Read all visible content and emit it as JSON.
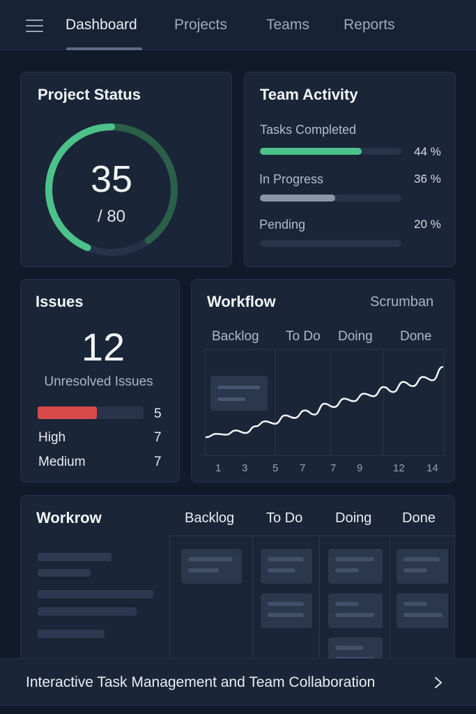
{
  "nav": {
    "tabs": [
      "Dashboard",
      "Projects",
      "Teams",
      "Reports"
    ],
    "active": "Dashboard"
  },
  "project_status": {
    "title": "Project Status",
    "value": "35",
    "total": "/ 80",
    "progress_fraction": 0.4375,
    "colors": {
      "progress": "#4cc28a",
      "remaining": "#2a6049",
      "track": "#26324a"
    }
  },
  "team_activity": {
    "title": "Team Activity",
    "rows": [
      {
        "label": "Tasks Completed",
        "percent": "44 %",
        "fill_fraction": 0.72,
        "color": "#4cc28a"
      },
      {
        "label": "In Progress",
        "percent": "36 %",
        "fill_fraction": 0.53,
        "color": "#8a97aa"
      },
      {
        "label": "Pending",
        "percent": "20 %",
        "fill_fraction": 0.0,
        "color": "#2c394f"
      }
    ]
  },
  "issues": {
    "title": "Issues",
    "count": "12",
    "subtitle": "Unresolved Issues",
    "rows": [
      {
        "label": "",
        "value": "5",
        "fill_fraction": 0.56,
        "color": "#d84a4a"
      },
      {
        "label": "High",
        "value": "7"
      },
      {
        "label": "Medium",
        "value": "7"
      }
    ]
  },
  "workflow": {
    "title": "Workflow",
    "mode": "Scrumban",
    "columns": [
      "Backlog",
      "To Do",
      "Doing",
      "Done"
    ],
    "chart_data": {
      "type": "line",
      "x_ticks": [
        "1",
        "3",
        "5",
        "7",
        "7",
        "9",
        "12",
        "14"
      ],
      "series": [
        {
          "values": [
            1.0,
            1.4,
            1.3,
            1.8,
            1.5,
            2.3,
            2.9,
            2.6,
            3.6,
            3.3,
            4.2,
            3.7,
            5.0,
            4.6,
            5.6,
            5.3,
            6.2,
            5.9,
            7.0,
            6.4,
            7.6,
            7.1,
            8.2,
            7.8,
            9.4
          ]
        }
      ],
      "ylim": [
        0,
        10
      ],
      "line_color": "#f2f5f9"
    }
  },
  "workrow": {
    "title": "Workrow",
    "columns": [
      "Backlog",
      "To Do",
      "Doing",
      "Done"
    ]
  },
  "footer": {
    "text": "Interactive Task Management and Team Collaboration"
  }
}
